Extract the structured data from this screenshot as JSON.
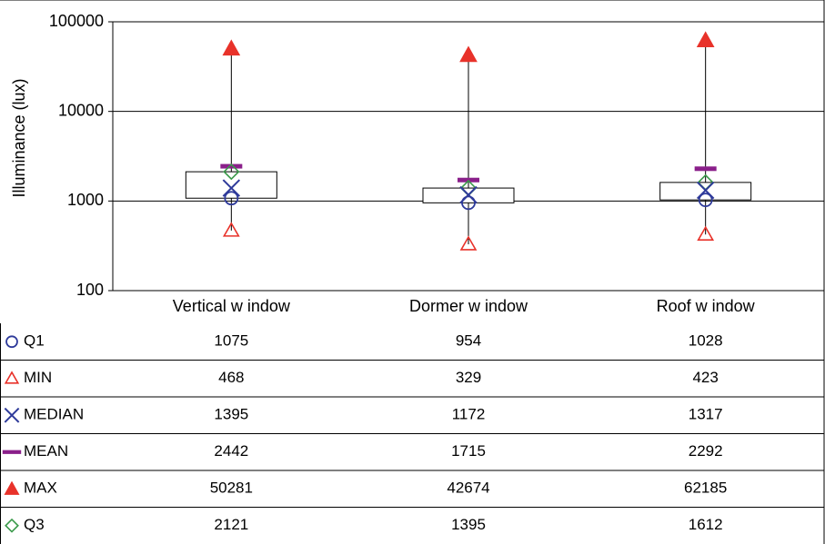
{
  "chart_data": {
    "type": "box",
    "ylabel": "Illuminance (lux)",
    "yscale": "log",
    "ylim": [
      100,
      100000
    ],
    "yticks": [
      "100",
      "1000",
      "10000",
      "100000"
    ],
    "ytick_values": [
      100,
      1000,
      10000,
      100000
    ],
    "grid": true,
    "categories": [
      "Vertical w indow",
      "Dormer w indow",
      "Roof w indow"
    ],
    "series": [
      {
        "key": "q1",
        "name": "Q1",
        "marker": "circle-open",
        "color": "#2e3a9a",
        "values": [
          1075,
          954,
          1028
        ],
        "labels": [
          "1075",
          "954",
          "1028"
        ]
      },
      {
        "key": "min",
        "name": "MIN",
        "marker": "triangle-open",
        "color": "#e8322a",
        "values": [
          468,
          329,
          423
        ],
        "labels": [
          "468",
          "329",
          "423"
        ]
      },
      {
        "key": "median",
        "name": "MEDIAN",
        "marker": "x",
        "color": "#2e3a9a",
        "values": [
          1395,
          1172,
          1317
        ],
        "labels": [
          "1395",
          "1172",
          "1317"
        ]
      },
      {
        "key": "mean",
        "name": "MEAN",
        "marker": "dash",
        "color": "#8a1f8a",
        "values": [
          2442,
          1715,
          2292
        ],
        "labels": [
          "2442",
          "1715",
          "2292"
        ]
      },
      {
        "key": "max",
        "name": "MAX",
        "marker": "triangle-filled",
        "color": "#e8322a",
        "values": [
          50281,
          42674,
          62185
        ],
        "labels": [
          "50281",
          "42674",
          "62185"
        ]
      },
      {
        "key": "q3",
        "name": "Q3",
        "marker": "diamond-open",
        "color": "#3a9a4a",
        "values": [
          2121,
          1395,
          1612
        ],
        "labels": [
          "2121",
          "1395",
          "1612"
        ]
      }
    ]
  }
}
